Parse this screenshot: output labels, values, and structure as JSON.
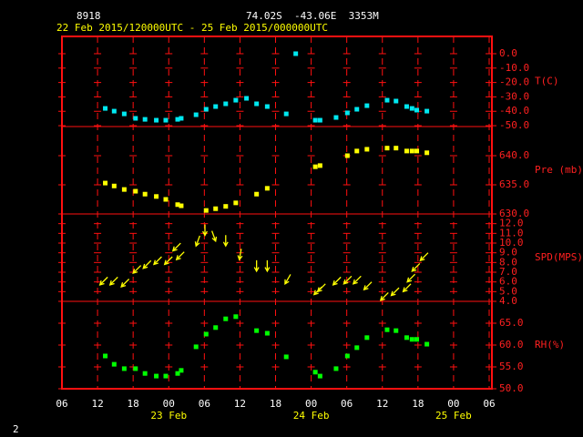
{
  "chart_data": {
    "type": "station-plot",
    "station": "8918",
    "location": "74.02S  -43.06E  3353M",
    "period": "22 Feb 2015/120000UTC - 25 Feb 2015/000000UTC",
    "xlim": [
      6,
      78
    ],
    "xticks": [
      {
        "value": 6,
        "label": "06"
      },
      {
        "value": 12,
        "label": "12"
      },
      {
        "value": 18,
        "label": "18"
      },
      {
        "value": 24,
        "label": "00"
      },
      {
        "value": 30,
        "label": "06"
      },
      {
        "value": 36,
        "label": "12"
      },
      {
        "value": 42,
        "label": "18"
      },
      {
        "value": 48,
        "label": "00"
      },
      {
        "value": 54,
        "label": "06"
      },
      {
        "value": 60,
        "label": "12"
      },
      {
        "value": 66,
        "label": "18"
      },
      {
        "value": 72,
        "label": "00"
      },
      {
        "value": 78,
        "label": "06"
      }
    ],
    "date_labels": [
      {
        "value": 24,
        "label": "23 Feb"
      },
      {
        "value": 48,
        "label": "24 Feb"
      },
      {
        "value": 72,
        "label": "25 Feb"
      }
    ],
    "panels": [
      {
        "type": "scatter",
        "ylabel": "T(C)",
        "color": "#00e8f0",
        "ylim": [
          -50.6,
          12.0
        ],
        "yticks": [
          {
            "value": 0,
            "label": "0.0"
          },
          {
            "value": -10,
            "label": "-10.0"
          },
          {
            "value": -20,
            "label": "-20.0"
          },
          {
            "value": -30,
            "label": "-30.0"
          },
          {
            "value": -40,
            "label": "-40.0"
          },
          {
            "value": -50,
            "label": "-50.0"
          }
        ],
        "x": [
          13.3,
          14.8,
          16.5,
          18.4,
          20.0,
          21.9,
          23.5,
          25.5,
          26.1,
          28.6,
          30.3,
          31.9,
          33.6,
          35.3,
          37.1,
          38.8,
          40.6,
          43.8,
          45.4,
          48.7,
          49.5,
          52.2,
          54.1,
          55.7,
          57.4,
          60.8,
          62.3,
          64.1,
          65.0,
          65.8,
          67.5
        ],
        "values": [
          -38.0,
          -39.9,
          -41.8,
          -44.9,
          -45.6,
          -46.2,
          -46.2,
          -45.6,
          -44.9,
          -42.4,
          -38.6,
          -36.7,
          -34.8,
          -32.3,
          -31.0,
          -34.8,
          -36.7,
          -41.8,
          0.0,
          -46.2,
          -46.2,
          -44.3,
          -41.1,
          -38.6,
          -36.1,
          -32.3,
          -32.9,
          -36.7,
          -38.0,
          -39.2,
          -39.9
        ]
      },
      {
        "type": "scatter",
        "ylabel": "Pre (mb)",
        "color": "#ffff00",
        "ylim": [
          630,
          645
        ],
        "yticks": [
          {
            "value": 640,
            "label": "640.0"
          },
          {
            "value": 635,
            "label": "635.0"
          },
          {
            "value": 630,
            "label": "630.0"
          }
        ],
        "x": [
          13.3,
          14.8,
          16.5,
          18.4,
          20.0,
          21.9,
          23.5,
          25.5,
          26.1,
          30.3,
          31.9,
          33.6,
          35.3,
          38.8,
          40.6,
          48.7,
          49.5,
          54.1,
          55.7,
          57.4,
          60.8,
          62.3,
          64.1,
          65.0,
          65.8,
          67.5
        ],
        "values": [
          635.3,
          634.8,
          634.2,
          633.9,
          633.4,
          633.0,
          632.5,
          631.6,
          631.4,
          630.6,
          630.9,
          631.3,
          631.9,
          633.4,
          634.4,
          638.1,
          638.3,
          640.0,
          640.8,
          641.1,
          641.3,
          641.3,
          640.8,
          640.8,
          640.8,
          640.5
        ]
      },
      {
        "type": "wind",
        "ylabel": "SPD(MPS)",
        "color": "#ffff00",
        "ylim": [
          4,
          13
        ],
        "yticks": [
          {
            "value": 12,
            "label": "12.0"
          },
          {
            "value": 11,
            "label": "11.0"
          },
          {
            "value": 10,
            "label": "10.0"
          },
          {
            "value": 9,
            "label": "9.0"
          },
          {
            "value": 8,
            "label": "8.0"
          },
          {
            "value": 7,
            "label": "7.0"
          },
          {
            "value": 6,
            "label": "6.0"
          },
          {
            "value": 5,
            "label": "5.0"
          },
          {
            "value": 4,
            "label": "4.0"
          }
        ],
        "x": [
          12.4,
          14.1,
          16.0,
          18.0,
          19.7,
          21.5,
          23.3,
          24.7,
          25.3,
          28.6,
          30.1,
          31.9,
          33.6,
          35.9,
          38.8,
          40.6,
          43.6,
          48.5,
          49.1,
          51.7,
          53.5,
          55.1,
          56.9,
          59.7,
          61.5,
          63.5,
          64.2,
          65.0,
          66.4
        ],
        "values": [
          5.7,
          5.7,
          5.5,
          6.9,
          7.4,
          7.8,
          7.8,
          9.2,
          8.3,
          9.7,
          10.8,
          10.2,
          9.7,
          8.3,
          7.1,
          7.1,
          5.8,
          4.7,
          5.0,
          5.7,
          5.8,
          5.8,
          5.2,
          4.1,
          4.6,
          5.0,
          6.0,
          7.1,
          8.2
        ],
        "direction": [
          45,
          45,
          45,
          45,
          45,
          45,
          45,
          45,
          45,
          20,
          0,
          340,
          0,
          10,
          0,
          0,
          30,
          45,
          45,
          45,
          45,
          45,
          45,
          45,
          45,
          45,
          45,
          45,
          45
        ]
      },
      {
        "type": "scatter",
        "ylabel": "RH(%)",
        "color": "#00ff00",
        "ylim": [
          50,
          70
        ],
        "yticks": [
          {
            "value": 65,
            "label": "65.0"
          },
          {
            "value": 60,
            "label": "60.0"
          },
          {
            "value": 55,
            "label": "55.0"
          },
          {
            "value": 50,
            "label": "50.0"
          }
        ],
        "x": [
          13.3,
          14.8,
          16.5,
          18.4,
          20.0,
          21.9,
          23.5,
          25.5,
          26.1,
          28.6,
          30.3,
          31.9,
          33.6,
          35.3,
          38.8,
          40.6,
          43.8,
          48.7,
          49.5,
          52.2,
          54.1,
          55.7,
          57.4,
          60.8,
          62.3,
          64.1,
          65.0,
          65.8,
          67.5
        ],
        "values": [
          57.5,
          55.6,
          54.6,
          54.6,
          53.5,
          52.9,
          52.9,
          53.5,
          54.2,
          59.6,
          62.5,
          64.0,
          66.0,
          66.5,
          63.3,
          62.7,
          57.3,
          53.8,
          52.9,
          54.6,
          57.5,
          59.4,
          61.7,
          63.5,
          63.3,
          61.7,
          61.3,
          61.3,
          60.2
        ]
      }
    ]
  },
  "footer": "2"
}
